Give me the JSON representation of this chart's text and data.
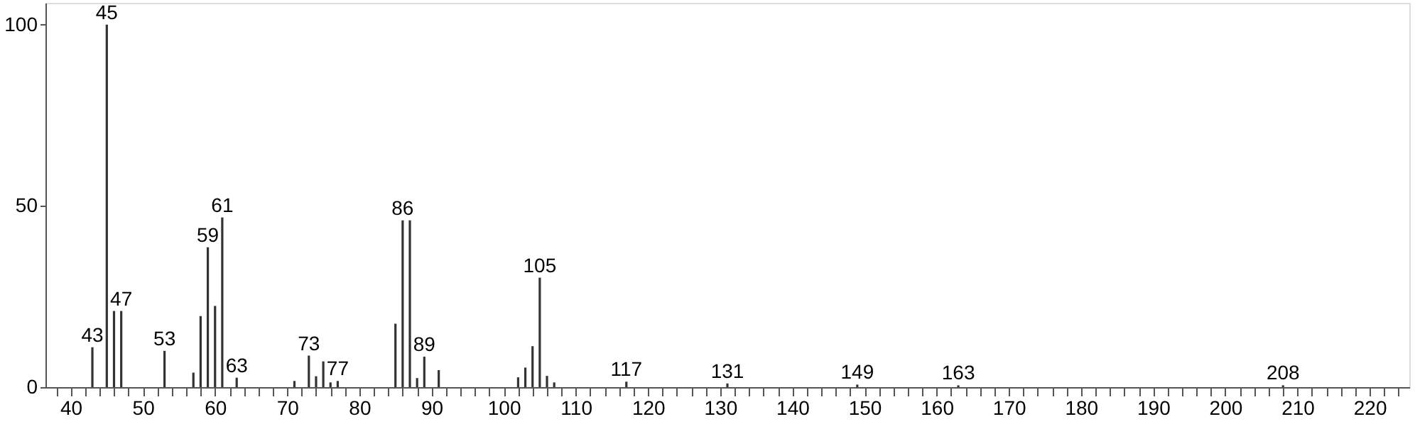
{
  "chart_data": {
    "type": "bar",
    "color": "#333333",
    "x": [
      43,
      45,
      46,
      47,
      53,
      57,
      58,
      59,
      60,
      61,
      63,
      71,
      73,
      74,
      75,
      76,
      77,
      85,
      86,
      87,
      88,
      89,
      91,
      102,
      103,
      104,
      105,
      106,
      107,
      117,
      131,
      149,
      163,
      208
    ],
    "values": [
      11,
      100,
      21,
      21,
      10,
      4,
      19.6,
      38.6,
      22.4,
      46.8,
      2.6,
      1.7,
      8.7,
      3,
      7.1,
      1.3,
      1.7,
      17.5,
      46,
      46,
      2.5,
      8.4,
      4.7,
      2.7,
      5.4,
      11.3,
      30.2,
      3.1,
      1.3,
      1.5,
      1,
      0.7,
      0.5,
      0.5
    ],
    "xlim": [
      36.5,
      225.5
    ],
    "xticks": [
      {
        "value": 38,
        "label": null
      },
      40,
      {
        "value": 42,
        "label": null
      },
      {
        "value": 44,
        "label": null
      },
      {
        "value": 46,
        "label": null
      },
      {
        "value": 48,
        "label": null
      },
      50,
      {
        "value": 52,
        "label": null
      },
      {
        "value": 54,
        "label": null
      },
      {
        "value": 56,
        "label": null
      },
      {
        "value": 58,
        "label": null
      },
      60,
      {
        "value": 62,
        "label": null
      },
      {
        "value": 64,
        "label": null
      },
      {
        "value": 66,
        "label": null
      },
      {
        "value": 68,
        "label": null
      },
      70,
      {
        "value": 72,
        "label": null
      },
      {
        "value": 74,
        "label": null
      },
      {
        "value": 76,
        "label": null
      },
      {
        "value": 78,
        "label": null
      },
      80,
      {
        "value": 82,
        "label": null
      },
      {
        "value": 84,
        "label": null
      },
      {
        "value": 86,
        "label": null
      },
      {
        "value": 88,
        "label": null
      },
      90,
      {
        "value": 92,
        "label": null
      },
      {
        "value": 94,
        "label": null
      },
      {
        "value": 96,
        "label": null
      },
      {
        "value": 98,
        "label": null
      },
      100,
      {
        "value": 102,
        "label": null
      },
      {
        "value": 104,
        "label": null
      },
      {
        "value": 106,
        "label": null
      },
      {
        "value": 108,
        "label": null
      },
      110,
      {
        "value": 112,
        "label": null
      },
      {
        "value": 114,
        "label": null
      },
      {
        "value": 116,
        "label": null
      },
      {
        "value": 118,
        "label": null
      },
      120,
      {
        "value": 122,
        "label": null
      },
      {
        "value": 124,
        "label": null
      },
      {
        "value": 126,
        "label": null
      },
      {
        "value": 128,
        "label": null
      },
      130,
      {
        "value": 132,
        "label": null
      },
      {
        "value": 134,
        "label": null
      },
      {
        "value": 136,
        "label": null
      },
      {
        "value": 138,
        "label": null
      },
      140,
      {
        "value": 142,
        "label": null
      },
      {
        "value": 144,
        "label": null
      },
      {
        "value": 146,
        "label": null
      },
      {
        "value": 148,
        "label": null
      },
      150,
      {
        "value": 152,
        "label": null
      },
      {
        "value": 154,
        "label": null
      },
      {
        "value": 156,
        "label": null
      },
      {
        "value": 158,
        "label": null
      },
      160,
      {
        "value": 162,
        "label": null
      },
      {
        "value": 164,
        "label": null
      },
      {
        "value": 166,
        "label": null
      },
      {
        "value": 168,
        "label": null
      },
      170,
      {
        "value": 172,
        "label": null
      },
      {
        "value": 174,
        "label": null
      },
      {
        "value": 176,
        "label": null
      },
      {
        "value": 178,
        "label": null
      },
      180,
      {
        "value": 182,
        "label": null
      },
      {
        "value": 184,
        "label": null
      },
      {
        "value": 186,
        "label": null
      },
      {
        "value": 188,
        "label": null
      },
      190,
      {
        "value": 192,
        "label": null
      },
      {
        "value": 194,
        "label": null
      },
      {
        "value": 196,
        "label": null
      },
      {
        "value": 198,
        "label": null
      },
      200,
      {
        "value": 202,
        "label": null
      },
      {
        "value": 204,
        "label": null
      },
      {
        "value": 206,
        "label": null
      },
      {
        "value": 208,
        "label": null
      },
      210,
      {
        "value": 212,
        "label": null
      },
      {
        "value": 214,
        "label": null
      },
      {
        "value": 216,
        "label": null
      },
      {
        "value": 218,
        "label": null
      },
      220,
      {
        "value": 222,
        "label": null
      },
      {
        "value": 224,
        "label": null
      }
    ],
    "ylim": [
      0,
      106
    ],
    "yticks": [
      0,
      50,
      100
    ],
    "grid": false,
    "annotations": [
      {
        "text": "43",
        "x": 43,
        "y": 11
      },
      {
        "text": "45",
        "x": 45,
        "y": 100
      },
      {
        "text": "47",
        "x": 47,
        "y": 21
      },
      {
        "text": "53",
        "x": 53,
        "y": 10
      },
      {
        "text": "59",
        "x": 59,
        "y": 38.6
      },
      {
        "text": "61",
        "x": 61,
        "y": 46.8
      },
      {
        "text": "63",
        "x": 63,
        "y": 2.6
      },
      {
        "text": "73",
        "x": 73,
        "y": 8.7
      },
      {
        "text": "77",
        "x": 77,
        "y": 1.7
      },
      {
        "text": "86",
        "x": 86,
        "y": 46
      },
      {
        "text": "89",
        "x": 89,
        "y": 8.4
      },
      {
        "text": "105",
        "x": 105,
        "y": 30.2
      },
      {
        "text": "117",
        "x": 117,
        "y": 1.5
      },
      {
        "text": "131",
        "x": 131,
        "y": 1
      },
      {
        "text": "149",
        "x": 149,
        "y": 0.7
      },
      {
        "text": "163",
        "x": 163,
        "y": 0.5
      },
      {
        "text": "208",
        "x": 208,
        "y": 0.5
      }
    ]
  }
}
